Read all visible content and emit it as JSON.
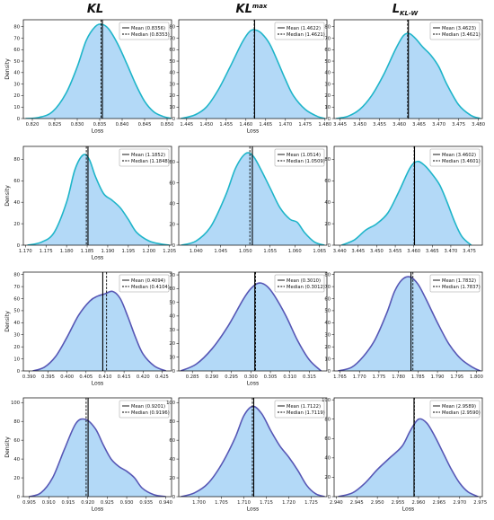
{
  "column_titles": [
    {
      "base": "KL",
      "sup": "",
      "sub": ""
    },
    {
      "base": "KL",
      "sup": "max",
      "sub": ""
    },
    {
      "base": "L",
      "sup": "",
      "sub": "KL-W"
    }
  ],
  "chart_data": [
    {
      "type": "area",
      "row": 0,
      "col": 0,
      "xlabel": "Loss",
      "ylabel": "Density",
      "xlim": [
        0.818,
        0.851
      ],
      "ylim": [
        0,
        86
      ],
      "xticks": [
        "0.820",
        "0.825",
        "0.830",
        "0.835",
        "0.840",
        "0.845",
        "0.850"
      ],
      "yticks": [
        "0",
        "10",
        "20",
        "30",
        "40",
        "50",
        "60",
        "70",
        "80"
      ],
      "fill": "#b3d9f7",
      "stroke": "#1fb5c9",
      "curve": {
        "x": [
          0.8185,
          0.8215,
          0.8245,
          0.8275,
          0.83,
          0.832,
          0.834,
          0.8355,
          0.837,
          0.839,
          0.841,
          0.843,
          0.845,
          0.847,
          0.849,
          0.851
        ],
        "y": [
          0,
          1,
          6,
          22,
          45,
          68,
          80,
          82,
          78,
          65,
          48,
          30,
          15,
          6,
          2,
          0
        ]
      },
      "mean": 0.8356,
      "median": 0.8353,
      "legend": [
        {
          "name": "Mean (0.8356)",
          "style": "solid"
        },
        {
          "name": "Median (0.8353)",
          "style": "dashed"
        }
      ]
    },
    {
      "type": "area",
      "row": 0,
      "col": 1,
      "xlabel": "Loss",
      "ylabel": "",
      "xlim": [
        1.443,
        1.4805
      ],
      "ylim": [
        0,
        86
      ],
      "xticks": [
        "1.445",
        "1.450",
        "1.455",
        "1.460",
        "1.465",
        "1.470",
        "1.475",
        "1.480"
      ],
      "yticks": [
        "0",
        "10",
        "20",
        "30",
        "40",
        "50",
        "60",
        "70",
        "80"
      ],
      "fill": "#b3d9f7",
      "stroke": "#1fb5c9",
      "curve": {
        "x": [
          1.4435,
          1.447,
          1.45,
          1.453,
          1.456,
          1.459,
          1.461,
          1.4625,
          1.464,
          1.466,
          1.468,
          1.47,
          1.472,
          1.475,
          1.478,
          1.48
        ],
        "y": [
          0,
          3,
          10,
          25,
          45,
          66,
          76,
          77,
          74,
          65,
          50,
          34,
          20,
          8,
          2,
          0
        ]
      },
      "mean": 1.4622,
      "median": 1.4621,
      "legend": [
        {
          "name": "Mean (1.4622)",
          "style": "solid"
        },
        {
          "name": "Median (1.4621)",
          "style": "dashed"
        }
      ]
    },
    {
      "type": "area",
      "row": 0,
      "col": 2,
      "xlabel": "",
      "ylabel": "",
      "xlim": [
        3.4435,
        3.481
      ],
      "ylim": [
        0,
        86
      ],
      "xticks": [
        "3.445",
        "3.450",
        "3.455",
        "3.460",
        "3.465",
        "3.470",
        "3.475",
        "3.480"
      ],
      "yticks": [
        "0",
        "10",
        "20",
        "30",
        "40",
        "50",
        "60",
        "70",
        "80"
      ],
      "fill": "#b3d9f7",
      "stroke": "#1fb5c9",
      "curve": {
        "x": [
          3.444,
          3.447,
          3.45,
          3.453,
          3.456,
          3.459,
          3.461,
          3.4625,
          3.464,
          3.466,
          3.468,
          3.47,
          3.472,
          3.475,
          3.478,
          3.4805
        ],
        "y": [
          0,
          2,
          8,
          20,
          38,
          60,
          72,
          74,
          70,
          62,
          55,
          45,
          30,
          12,
          3,
          0
        ]
      },
      "mean": 3.4623,
      "median": 3.4621,
      "legend": [
        {
          "name": "Mean (3.4623)",
          "style": "solid"
        },
        {
          "name": "Median (3.4621)",
          "style": "dashed"
        }
      ]
    },
    {
      "type": "area",
      "row": 1,
      "col": 0,
      "xlabel": "Loss",
      "ylabel": "Density",
      "xlim": [
        1.1695,
        1.2055
      ],
      "ylim": [
        0,
        92
      ],
      "xticks": [
        "1.170",
        "1.175",
        "1.180",
        "1.185",
        "1.190",
        "1.195",
        "1.200",
        "1.205"
      ],
      "yticks": [
        "0",
        "20",
        "40",
        "60",
        "80"
      ],
      "fill": "#b3d9f7",
      "stroke": "#1fb5c9",
      "curve": {
        "x": [
          1.1705,
          1.174,
          1.177,
          1.18,
          1.182,
          1.184,
          1.1855,
          1.187,
          1.189,
          1.191,
          1.193,
          1.195,
          1.197,
          1.2,
          1.203,
          1.205
        ],
        "y": [
          0,
          3,
          12,
          40,
          70,
          84,
          80,
          64,
          48,
          42,
          35,
          24,
          12,
          4,
          1,
          0
        ]
      },
      "mean": 1.1852,
      "median": 1.1848,
      "legend": [
        {
          "name": "Mean (1.1852)",
          "style": "solid"
        },
        {
          "name": "Median (1.1848)",
          "style": "dashed"
        }
      ]
    },
    {
      "type": "area",
      "row": 1,
      "col": 1,
      "xlabel": "",
      "ylabel": "",
      "xlim": [
        1.0365,
        1.0665
      ],
      "ylim": [
        0,
        95
      ],
      "xticks": [
        "1.040",
        "1.045",
        "1.050",
        "1.055",
        "1.060",
        "1.065"
      ],
      "yticks": [
        "0",
        "20",
        "40",
        "60",
        "80"
      ],
      "fill": "#b3d9f7",
      "stroke": "#1fb5c9",
      "curve": {
        "x": [
          1.037,
          1.04,
          1.043,
          1.046,
          1.048,
          1.05,
          1.0515,
          1.053,
          1.055,
          1.057,
          1.059,
          1.0605,
          1.062,
          1.064,
          1.066
        ],
        "y": [
          0,
          4,
          18,
          48,
          74,
          88,
          86,
          74,
          55,
          36,
          25,
          22,
          12,
          3,
          0
        ]
      },
      "mean": 1.0514,
      "median": 1.0509,
      "legend": [
        {
          "name": "Mean (1.0514)",
          "style": "solid"
        },
        {
          "name": "Median (1.0509)",
          "style": "dashed"
        }
      ]
    },
    {
      "type": "area",
      "row": 1,
      "col": 2,
      "xlabel": "",
      "ylabel": "",
      "xlim": [
        3.4385,
        3.4785
      ],
      "ylim": [
        0,
        92
      ],
      "xticks": [
        "3.440",
        "3.445",
        "3.450",
        "3.455",
        "3.460",
        "3.465",
        "3.470",
        "3.475"
      ],
      "yticks": [
        "0",
        "20",
        "40",
        "60",
        "80"
      ],
      "fill": "#b3d9f7",
      "stroke": "#1fb5c9",
      "curve": {
        "x": [
          3.4405,
          3.444,
          3.447,
          3.45,
          3.453,
          3.456,
          3.459,
          3.461,
          3.463,
          3.465,
          3.467,
          3.469,
          3.471,
          3.473,
          3.4755
        ],
        "y": [
          0,
          5,
          14,
          20,
          30,
          50,
          72,
          78,
          74,
          66,
          56,
          40,
          22,
          8,
          0
        ]
      },
      "mean": 3.4602,
      "median": 3.4601,
      "legend": [
        {
          "name": "Mean (3.4602)",
          "style": "solid"
        },
        {
          "name": "Median (3.4601)",
          "style": "dashed"
        }
      ]
    },
    {
      "type": "area",
      "row": 2,
      "col": 0,
      "xlabel": "Loss",
      "ylabel": "Density",
      "xlim": [
        0.3885,
        0.4275
      ],
      "ylim": [
        0,
        82
      ],
      "xticks": [
        "0.390",
        "0.395",
        "0.400",
        "0.405",
        "0.410",
        "0.415",
        "0.420",
        "0.425"
      ],
      "yticks": [
        "0",
        "10",
        "20",
        "30",
        "40",
        "50",
        "60",
        "70",
        "80"
      ],
      "fill": "#b3d9f7",
      "stroke": "#5757b5",
      "curve": {
        "x": [
          0.391,
          0.394,
          0.397,
          0.4,
          0.403,
          0.406,
          0.408,
          0.41,
          0.412,
          0.414,
          0.416,
          0.418,
          0.42,
          0.423,
          0.426
        ],
        "y": [
          0,
          3,
          12,
          28,
          46,
          58,
          62,
          64,
          66,
          60,
          45,
          28,
          14,
          4,
          0
        ]
      },
      "mean": 0.4094,
      "median": 0.4104,
      "legend": [
        {
          "name": "Mean (0.4094)",
          "style": "solid"
        },
        {
          "name": "Median (0.4104)",
          "style": "dashed"
        }
      ]
    },
    {
      "type": "area",
      "row": 2,
      "col": 1,
      "xlabel": "Loss",
      "ylabel": "",
      "xlim": [
        0.2815,
        0.3195
      ],
      "ylim": [
        0,
        72
      ],
      "xticks": [
        "0.285",
        "0.290",
        "0.295",
        "0.300",
        "0.305",
        "0.310",
        "0.315"
      ],
      "yticks": [
        "0",
        "10",
        "20",
        "30",
        "40",
        "50",
        "60",
        "70"
      ],
      "fill": "#b3d9f7",
      "stroke": "#5757b5",
      "curve": {
        "x": [
          0.282,
          0.286,
          0.29,
          0.294,
          0.298,
          0.3,
          0.302,
          0.304,
          0.306,
          0.309,
          0.312,
          0.315,
          0.318
        ],
        "y": [
          0,
          5,
          16,
          32,
          52,
          60,
          64,
          62,
          55,
          40,
          22,
          8,
          0
        ]
      },
      "mean": 0.301,
      "median": 0.3012,
      "legend": [
        {
          "name": "Mean (0.3010)",
          "style": "solid"
        },
        {
          "name": "Median (0.3012)",
          "style": "dashed"
        }
      ]
    },
    {
      "type": "area",
      "row": 2,
      "col": 2,
      "xlabel": "",
      "ylabel": "",
      "xlim": [
        1.7635,
        1.8015
      ],
      "ylim": [
        0,
        82
      ],
      "xticks": [
        "1.765",
        "1.770",
        "1.775",
        "1.780",
        "1.785",
        "1.790",
        "1.795",
        "1.800"
      ],
      "yticks": [
        "0",
        "10",
        "20",
        "30",
        "40",
        "50",
        "60",
        "70",
        "80"
      ],
      "fill": "#b3d9f7",
      "stroke": "#5757b5",
      "curve": {
        "x": [
          1.7645,
          1.768,
          1.771,
          1.774,
          1.777,
          1.779,
          1.781,
          1.783,
          1.785,
          1.787,
          1.79,
          1.793,
          1.796,
          1.799,
          1.801
        ],
        "y": [
          0,
          3,
          12,
          26,
          48,
          66,
          76,
          78,
          72,
          60,
          40,
          22,
          10,
          3,
          0
        ]
      },
      "mean": 1.7832,
      "median": 1.7837,
      "legend": [
        {
          "name": "Mean (1.7832)",
          "style": "solid"
        },
        {
          "name": "Median (1.7837)",
          "style": "dashed"
        }
      ]
    },
    {
      "type": "area",
      "row": 3,
      "col": 0,
      "xlabel": "Loss",
      "ylabel": "Density",
      "xlim": [
        0.9035,
        0.9415
      ],
      "ylim": [
        0,
        105
      ],
      "xticks": [
        "0.905",
        "0.910",
        "0.915",
        "0.920",
        "0.925",
        "0.930",
        "0.935",
        "0.940"
      ],
      "yticks": [
        "0",
        "20",
        "40",
        "60",
        "80",
        "100"
      ],
      "fill": "#b3d9f7",
      "stroke": "#5757b5",
      "curve": {
        "x": [
          0.905,
          0.908,
          0.911,
          0.914,
          0.917,
          0.9195,
          0.922,
          0.924,
          0.926,
          0.928,
          0.93,
          0.932,
          0.934,
          0.937,
          0.94
        ],
        "y": [
          0,
          4,
          20,
          50,
          78,
          82,
          72,
          55,
          40,
          32,
          27,
          20,
          9,
          2,
          0
        ]
      },
      "mean": 0.9201,
      "median": 0.9196,
      "legend": [
        {
          "name": "Mean (0.9201)",
          "style": "solid"
        },
        {
          "name": "Median (0.9196)",
          "style": "dashed"
        }
      ]
    },
    {
      "type": "area",
      "row": 3,
      "col": 1,
      "xlabel": "Loss",
      "ylabel": "",
      "xlim": [
        1.6955,
        1.7285
      ],
      "ylim": [
        0,
        105
      ],
      "xticks": [
        "1.700",
        "1.705",
        "1.710",
        "1.715",
        "1.720",
        "1.725"
      ],
      "yticks": [
        "0",
        "20",
        "40",
        "60",
        "80",
        "100"
      ],
      "fill": "#b3d9f7",
      "stroke": "#5757b5",
      "curve": {
        "x": [
          1.696,
          1.699,
          1.702,
          1.705,
          1.708,
          1.71,
          1.712,
          1.714,
          1.716,
          1.718,
          1.72,
          1.722,
          1.724,
          1.726,
          1.728
        ],
        "y": [
          0,
          4,
          14,
          34,
          62,
          86,
          96,
          88,
          70,
          54,
          42,
          28,
          12,
          3,
          0
        ]
      },
      "mean": 1.7122,
      "median": 1.7119,
      "legend": [
        {
          "name": "Mean (1.7122)",
          "style": "solid"
        },
        {
          "name": "Median (1.7119)",
          "style": "dashed"
        }
      ]
    },
    {
      "type": "area",
      "row": 3,
      "col": 2,
      "xlabel": "Loss",
      "ylabel": "",
      "xlim": [
        2.9395,
        2.9755
      ],
      "ylim": [
        0,
        102
      ],
      "xticks": [
        "2.940",
        "2.945",
        "2.950",
        "2.955",
        "2.960",
        "2.965",
        "2.970",
        "2.975"
      ],
      "yticks": [
        "0",
        "20",
        "40",
        "60",
        "80",
        "100"
      ],
      "fill": "#b3d9f7",
      "stroke": "#5757b5",
      "curve": {
        "x": [
          2.9405,
          2.944,
          2.947,
          2.95,
          2.953,
          2.956,
          2.958,
          2.96,
          2.962,
          2.964,
          2.966,
          2.968,
          2.97,
          2.972,
          2.9745
        ],
        "y": [
          0,
          4,
          14,
          28,
          40,
          52,
          68,
          80,
          76,
          62,
          45,
          28,
          14,
          5,
          0
        ]
      },
      "mean": 2.9589,
      "median": 2.959,
      "legend": [
        {
          "name": "Mean (2.9589)",
          "style": "solid"
        },
        {
          "name": "Median (2.9590)",
          "style": "dashed"
        }
      ]
    }
  ]
}
